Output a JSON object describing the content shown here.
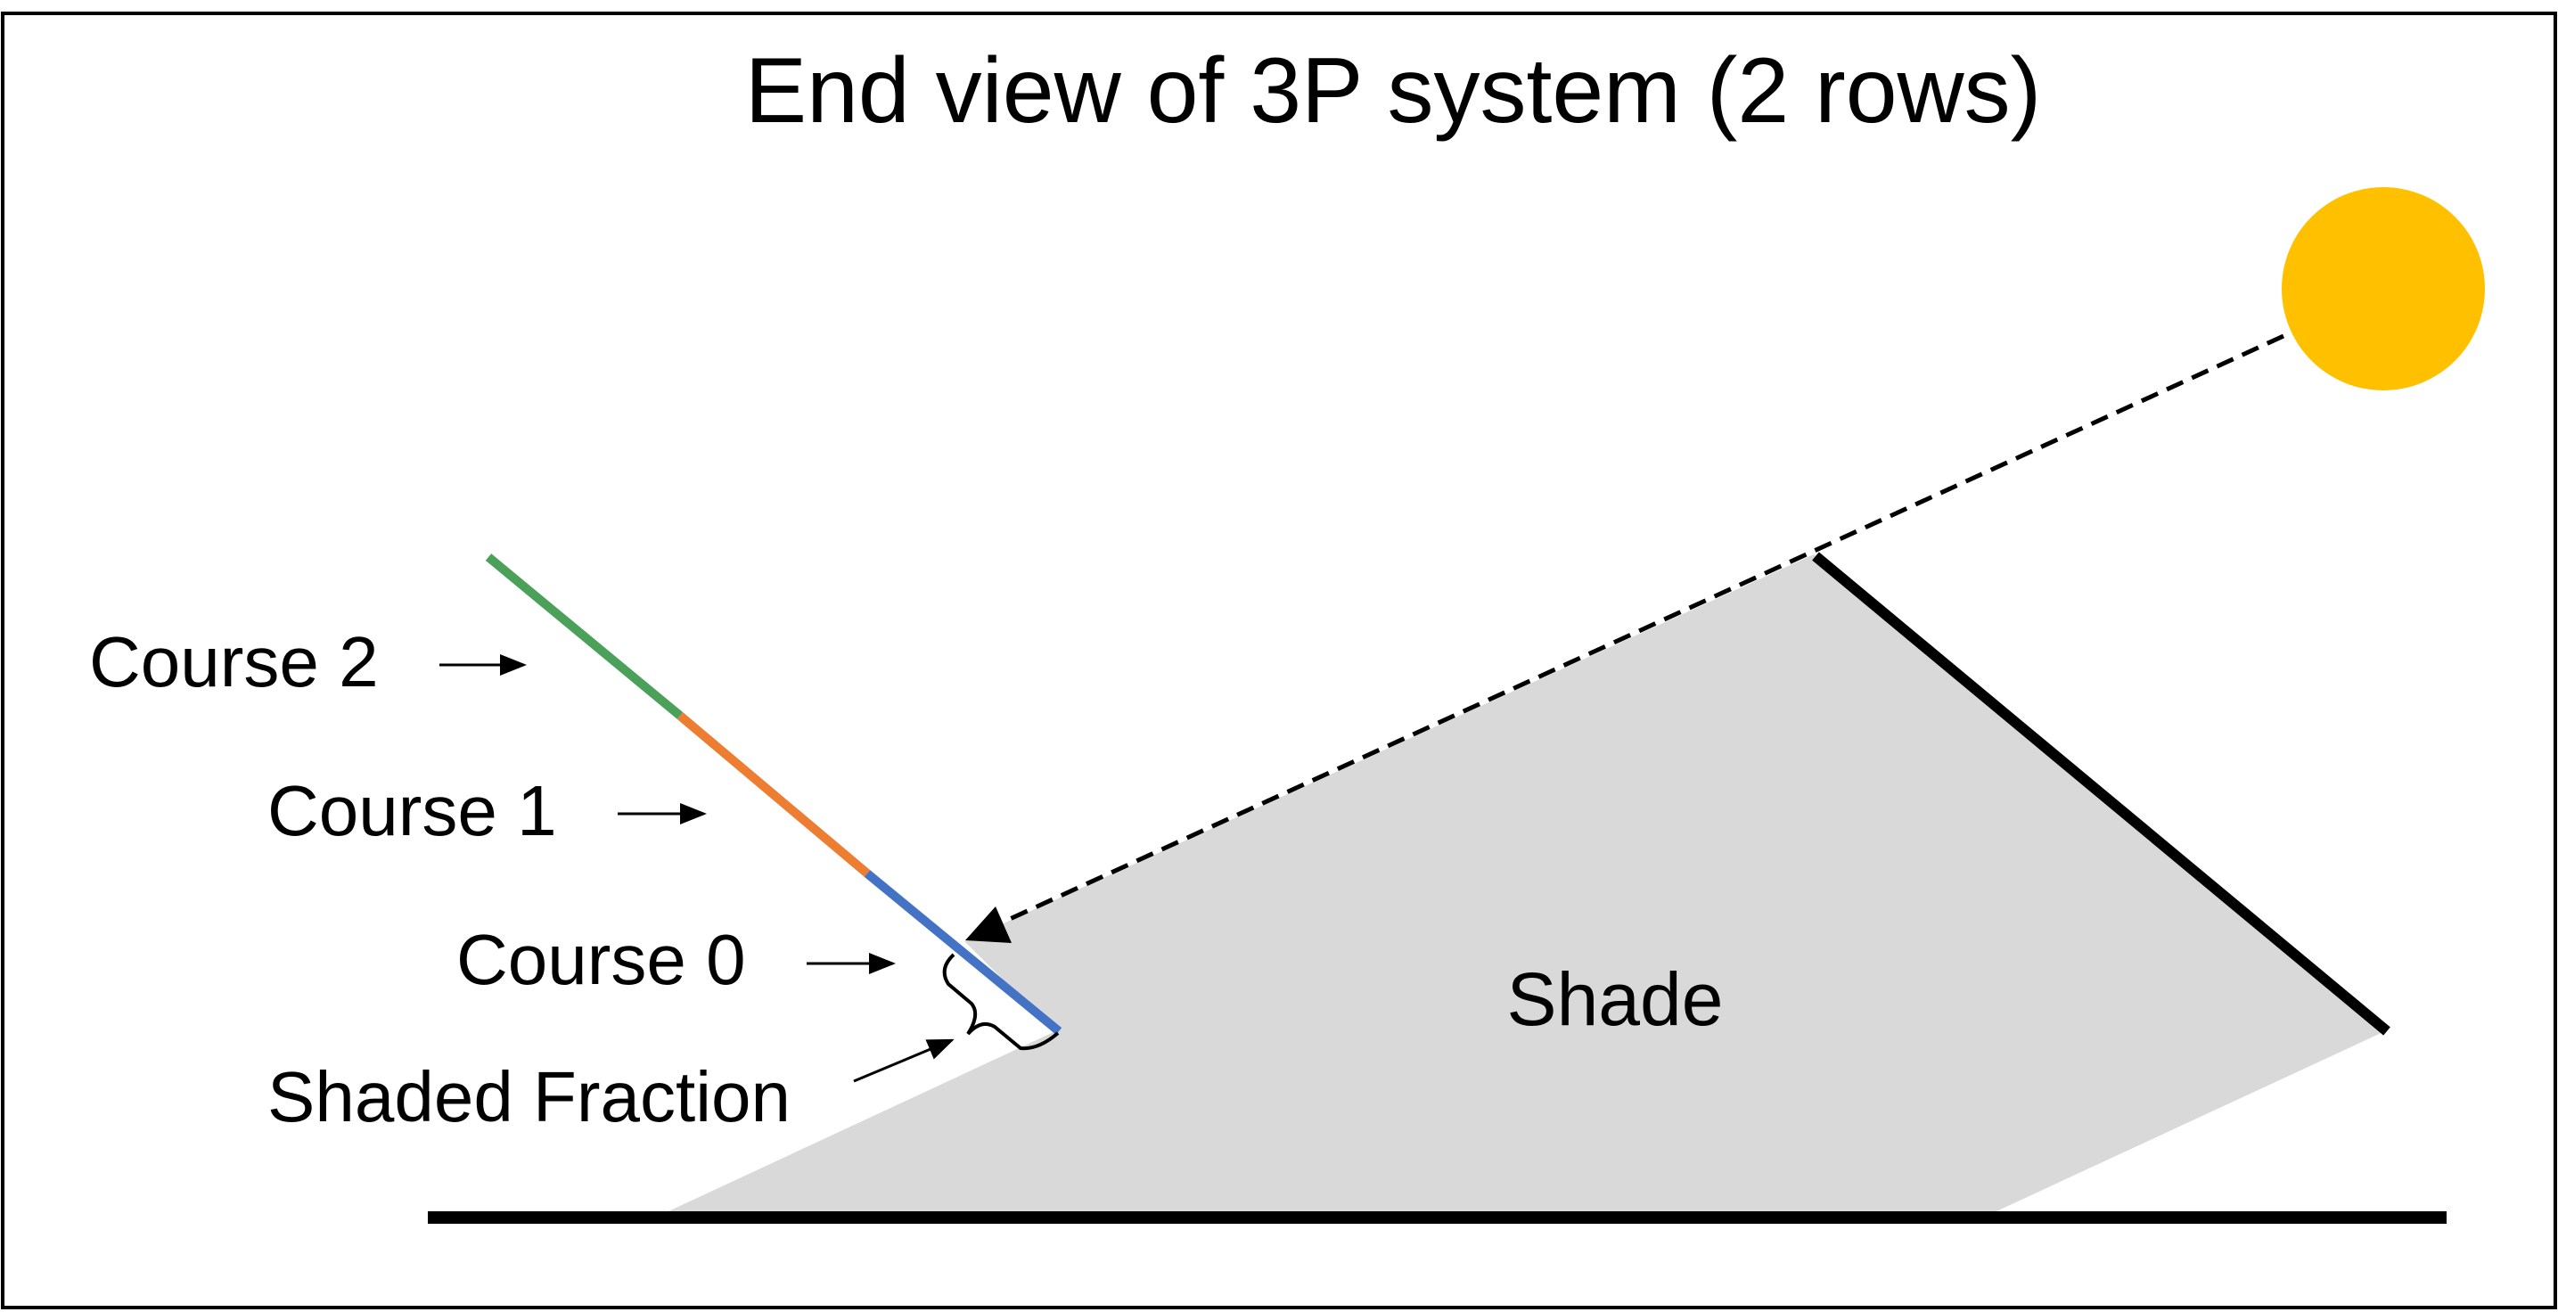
{
  "title": "End view of 3P system (2 rows)",
  "labels": {
    "course2": "Course 2",
    "course1": "Course 1",
    "course0": "Course 0",
    "shaded_fraction": "Shaded Fraction",
    "shade": "Shade"
  },
  "colors": {
    "sun": "#FFC000",
    "shade": "#D9D9D9",
    "course0": "#4472C4",
    "course1": "#ED7D31",
    "course2": "#4CA15A",
    "rows": "#000000",
    "ground": "#000000",
    "border": "#000000"
  },
  "icons": {
    "sun": "sun-icon",
    "sun_ray": "dashed-arrow-icon",
    "brace": "curly-brace-icon",
    "pointer": "arrow-right-icon"
  }
}
